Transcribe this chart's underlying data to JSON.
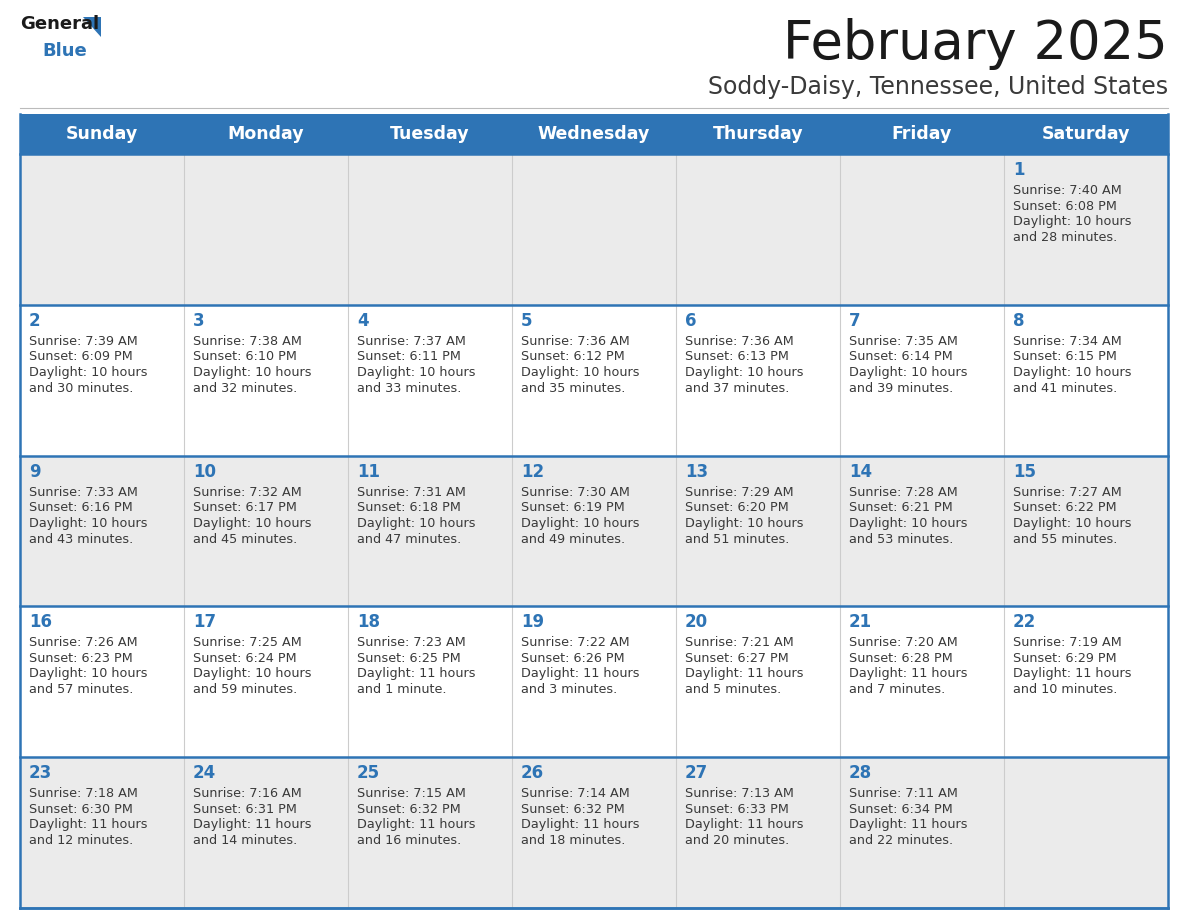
{
  "title": "February 2025",
  "subtitle": "Soddy-Daisy, Tennessee, United States",
  "header_bg": "#2E74B5",
  "header_text_color": "#FFFFFF",
  "day_names": [
    "Sunday",
    "Monday",
    "Tuesday",
    "Wednesday",
    "Thursday",
    "Friday",
    "Saturday"
  ],
  "row_bg": [
    "#EBEBEB",
    "#FFFFFF",
    "#EBEBEB",
    "#FFFFFF",
    "#EBEBEB"
  ],
  "cell_border_color": "#2E74B5",
  "day_num_color": "#2E74B5",
  "info_text_color": "#3A3A3A",
  "logo_general_color": "#1A1A1A",
  "logo_blue_color": "#2E74B5",
  "calendar_data": [
    [
      null,
      null,
      null,
      null,
      null,
      null,
      {
        "day": "1",
        "sunrise": "7:40 AM",
        "sunset": "6:08 PM",
        "daylight": "10 hours\nand 28 minutes."
      }
    ],
    [
      {
        "day": "2",
        "sunrise": "7:39 AM",
        "sunset": "6:09 PM",
        "daylight": "10 hours\nand 30 minutes."
      },
      {
        "day": "3",
        "sunrise": "7:38 AM",
        "sunset": "6:10 PM",
        "daylight": "10 hours\nand 32 minutes."
      },
      {
        "day": "4",
        "sunrise": "7:37 AM",
        "sunset": "6:11 PM",
        "daylight": "10 hours\nand 33 minutes."
      },
      {
        "day": "5",
        "sunrise": "7:36 AM",
        "sunset": "6:12 PM",
        "daylight": "10 hours\nand 35 minutes."
      },
      {
        "day": "6",
        "sunrise": "7:36 AM",
        "sunset": "6:13 PM",
        "daylight": "10 hours\nand 37 minutes."
      },
      {
        "day": "7",
        "sunrise": "7:35 AM",
        "sunset": "6:14 PM",
        "daylight": "10 hours\nand 39 minutes."
      },
      {
        "day": "8",
        "sunrise": "7:34 AM",
        "sunset": "6:15 PM",
        "daylight": "10 hours\nand 41 minutes."
      }
    ],
    [
      {
        "day": "9",
        "sunrise": "7:33 AM",
        "sunset": "6:16 PM",
        "daylight": "10 hours\nand 43 minutes."
      },
      {
        "day": "10",
        "sunrise": "7:32 AM",
        "sunset": "6:17 PM",
        "daylight": "10 hours\nand 45 minutes."
      },
      {
        "day": "11",
        "sunrise": "7:31 AM",
        "sunset": "6:18 PM",
        "daylight": "10 hours\nand 47 minutes."
      },
      {
        "day": "12",
        "sunrise": "7:30 AM",
        "sunset": "6:19 PM",
        "daylight": "10 hours\nand 49 minutes."
      },
      {
        "day": "13",
        "sunrise": "7:29 AM",
        "sunset": "6:20 PM",
        "daylight": "10 hours\nand 51 minutes."
      },
      {
        "day": "14",
        "sunrise": "7:28 AM",
        "sunset": "6:21 PM",
        "daylight": "10 hours\nand 53 minutes."
      },
      {
        "day": "15",
        "sunrise": "7:27 AM",
        "sunset": "6:22 PM",
        "daylight": "10 hours\nand 55 minutes."
      }
    ],
    [
      {
        "day": "16",
        "sunrise": "7:26 AM",
        "sunset": "6:23 PM",
        "daylight": "10 hours\nand 57 minutes."
      },
      {
        "day": "17",
        "sunrise": "7:25 AM",
        "sunset": "6:24 PM",
        "daylight": "10 hours\nand 59 minutes."
      },
      {
        "day": "18",
        "sunrise": "7:23 AM",
        "sunset": "6:25 PM",
        "daylight": "11 hours\nand 1 minute."
      },
      {
        "day": "19",
        "sunrise": "7:22 AM",
        "sunset": "6:26 PM",
        "daylight": "11 hours\nand 3 minutes."
      },
      {
        "day": "20",
        "sunrise": "7:21 AM",
        "sunset": "6:27 PM",
        "daylight": "11 hours\nand 5 minutes."
      },
      {
        "day": "21",
        "sunrise": "7:20 AM",
        "sunset": "6:28 PM",
        "daylight": "11 hours\nand 7 minutes."
      },
      {
        "day": "22",
        "sunrise": "7:19 AM",
        "sunset": "6:29 PM",
        "daylight": "11 hours\nand 10 minutes."
      }
    ],
    [
      {
        "day": "23",
        "sunrise": "7:18 AM",
        "sunset": "6:30 PM",
        "daylight": "11 hours\nand 12 minutes."
      },
      {
        "day": "24",
        "sunrise": "7:16 AM",
        "sunset": "6:31 PM",
        "daylight": "11 hours\nand 14 minutes."
      },
      {
        "day": "25",
        "sunrise": "7:15 AM",
        "sunset": "6:32 PM",
        "daylight": "11 hours\nand 16 minutes."
      },
      {
        "day": "26",
        "sunrise": "7:14 AM",
        "sunset": "6:32 PM",
        "daylight": "11 hours\nand 18 minutes."
      },
      {
        "day": "27",
        "sunrise": "7:13 AM",
        "sunset": "6:33 PM",
        "daylight": "11 hours\nand 20 minutes."
      },
      {
        "day": "28",
        "sunrise": "7:11 AM",
        "sunset": "6:34 PM",
        "daylight": "11 hours\nand 22 minutes."
      },
      null
    ]
  ],
  "title_fontsize": 38,
  "subtitle_fontsize": 17,
  "header_fontsize": 12.5,
  "day_num_fontsize": 12,
  "info_fontsize": 9.2,
  "fig_width": 11.88,
  "fig_height": 9.18
}
